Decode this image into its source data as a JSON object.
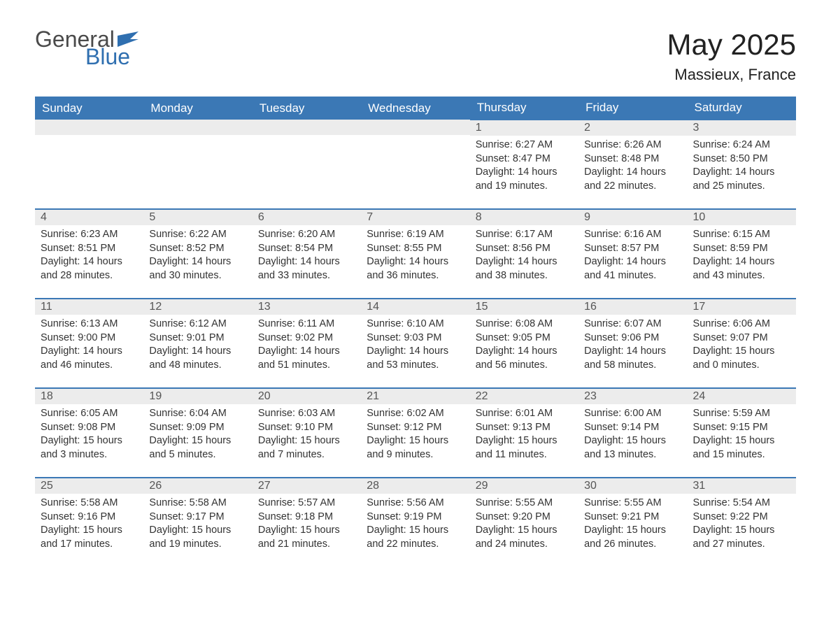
{
  "logo": {
    "text_general": "General",
    "text_blue": "Blue",
    "icon_color": "#2f6fb0"
  },
  "title": "May 2025",
  "location": "Massieux, France",
  "colors": {
    "header_bg": "#3b78b5",
    "header_text": "#ffffff",
    "daynum_bg": "#ececec",
    "daynum_text": "#555555",
    "body_text": "#333333",
    "row_border": "#3b78b5",
    "page_bg": "#ffffff"
  },
  "typography": {
    "title_fontsize": 42,
    "location_fontsize": 22,
    "weekday_fontsize": 17,
    "daynum_fontsize": 16,
    "body_fontsize": 14.5,
    "font_family": "Arial"
  },
  "weekdays": [
    "Sunday",
    "Monday",
    "Tuesday",
    "Wednesday",
    "Thursday",
    "Friday",
    "Saturday"
  ],
  "weeks": [
    [
      null,
      null,
      null,
      null,
      {
        "n": "1",
        "sunrise": "6:27 AM",
        "sunset": "8:47 PM",
        "daylight": "14 hours and 19 minutes."
      },
      {
        "n": "2",
        "sunrise": "6:26 AM",
        "sunset": "8:48 PM",
        "daylight": "14 hours and 22 minutes."
      },
      {
        "n": "3",
        "sunrise": "6:24 AM",
        "sunset": "8:50 PM",
        "daylight": "14 hours and 25 minutes."
      }
    ],
    [
      {
        "n": "4",
        "sunrise": "6:23 AM",
        "sunset": "8:51 PM",
        "daylight": "14 hours and 28 minutes."
      },
      {
        "n": "5",
        "sunrise": "6:22 AM",
        "sunset": "8:52 PM",
        "daylight": "14 hours and 30 minutes."
      },
      {
        "n": "6",
        "sunrise": "6:20 AM",
        "sunset": "8:54 PM",
        "daylight": "14 hours and 33 minutes."
      },
      {
        "n": "7",
        "sunrise": "6:19 AM",
        "sunset": "8:55 PM",
        "daylight": "14 hours and 36 minutes."
      },
      {
        "n": "8",
        "sunrise": "6:17 AM",
        "sunset": "8:56 PM",
        "daylight": "14 hours and 38 minutes."
      },
      {
        "n": "9",
        "sunrise": "6:16 AM",
        "sunset": "8:57 PM",
        "daylight": "14 hours and 41 minutes."
      },
      {
        "n": "10",
        "sunrise": "6:15 AM",
        "sunset": "8:59 PM",
        "daylight": "14 hours and 43 minutes."
      }
    ],
    [
      {
        "n": "11",
        "sunrise": "6:13 AM",
        "sunset": "9:00 PM",
        "daylight": "14 hours and 46 minutes."
      },
      {
        "n": "12",
        "sunrise": "6:12 AM",
        "sunset": "9:01 PM",
        "daylight": "14 hours and 48 minutes."
      },
      {
        "n": "13",
        "sunrise": "6:11 AM",
        "sunset": "9:02 PM",
        "daylight": "14 hours and 51 minutes."
      },
      {
        "n": "14",
        "sunrise": "6:10 AM",
        "sunset": "9:03 PM",
        "daylight": "14 hours and 53 minutes."
      },
      {
        "n": "15",
        "sunrise": "6:08 AM",
        "sunset": "9:05 PM",
        "daylight": "14 hours and 56 minutes."
      },
      {
        "n": "16",
        "sunrise": "6:07 AM",
        "sunset": "9:06 PM",
        "daylight": "14 hours and 58 minutes."
      },
      {
        "n": "17",
        "sunrise": "6:06 AM",
        "sunset": "9:07 PM",
        "daylight": "15 hours and 0 minutes."
      }
    ],
    [
      {
        "n": "18",
        "sunrise": "6:05 AM",
        "sunset": "9:08 PM",
        "daylight": "15 hours and 3 minutes."
      },
      {
        "n": "19",
        "sunrise": "6:04 AM",
        "sunset": "9:09 PM",
        "daylight": "15 hours and 5 minutes."
      },
      {
        "n": "20",
        "sunrise": "6:03 AM",
        "sunset": "9:10 PM",
        "daylight": "15 hours and 7 minutes."
      },
      {
        "n": "21",
        "sunrise": "6:02 AM",
        "sunset": "9:12 PM",
        "daylight": "15 hours and 9 minutes."
      },
      {
        "n": "22",
        "sunrise": "6:01 AM",
        "sunset": "9:13 PM",
        "daylight": "15 hours and 11 minutes."
      },
      {
        "n": "23",
        "sunrise": "6:00 AM",
        "sunset": "9:14 PM",
        "daylight": "15 hours and 13 minutes."
      },
      {
        "n": "24",
        "sunrise": "5:59 AM",
        "sunset": "9:15 PM",
        "daylight": "15 hours and 15 minutes."
      }
    ],
    [
      {
        "n": "25",
        "sunrise": "5:58 AM",
        "sunset": "9:16 PM",
        "daylight": "15 hours and 17 minutes."
      },
      {
        "n": "26",
        "sunrise": "5:58 AM",
        "sunset": "9:17 PM",
        "daylight": "15 hours and 19 minutes."
      },
      {
        "n": "27",
        "sunrise": "5:57 AM",
        "sunset": "9:18 PM",
        "daylight": "15 hours and 21 minutes."
      },
      {
        "n": "28",
        "sunrise": "5:56 AM",
        "sunset": "9:19 PM",
        "daylight": "15 hours and 22 minutes."
      },
      {
        "n": "29",
        "sunrise": "5:55 AM",
        "sunset": "9:20 PM",
        "daylight": "15 hours and 24 minutes."
      },
      {
        "n": "30",
        "sunrise": "5:55 AM",
        "sunset": "9:21 PM",
        "daylight": "15 hours and 26 minutes."
      },
      {
        "n": "31",
        "sunrise": "5:54 AM",
        "sunset": "9:22 PM",
        "daylight": "15 hours and 27 minutes."
      }
    ]
  ],
  "labels": {
    "sunrise": "Sunrise: ",
    "sunset": "Sunset: ",
    "daylight": "Daylight: "
  }
}
